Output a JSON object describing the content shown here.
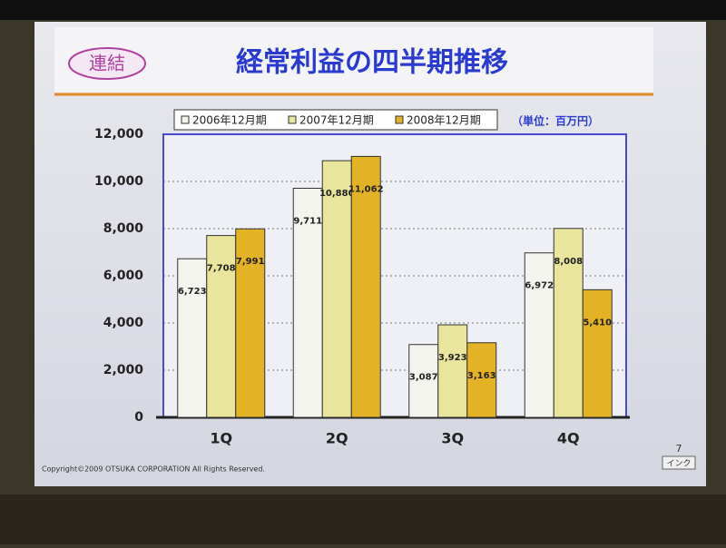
{
  "chart_data": {
    "type": "bar",
    "badge": "連結",
    "title": "経常利益の四半期推移",
    "unit_note": "（単位：百万円）",
    "footer": "Copyright©2009 OTSUKA CORPORATION All Rights Reserved.",
    "page_number": "7",
    "corner_label": "インク",
    "categories": [
      "1Q",
      "2Q",
      "3Q",
      "4Q"
    ],
    "series": [
      {
        "name": "2006年12月期",
        "color": "#f4f4ee",
        "values": [
          6723,
          9711,
          3087,
          6972
        ],
        "value_labels": [
          "6,723",
          "9,711",
          "3,087",
          "6,972"
        ]
      },
      {
        "name": "2007年12月期",
        "color": "#e9e59c",
        "values": [
          7708,
          10880,
          3923,
          8008
        ],
        "value_labels": [
          "7,708",
          "10,880",
          "3,923",
          "8,008"
        ]
      },
      {
        "name": "2008年12月期",
        "color": "#e3b225",
        "values": [
          7991,
          11062,
          3163,
          5410
        ],
        "value_labels": [
          "7,991",
          "11,062",
          "3,163",
          "5,410"
        ]
      }
    ],
    "ylim": [
      0,
      12000
    ],
    "yticks": [
      0,
      {
        "value": 2000,
        "label": "2,000"
      },
      {
        "value": 4000,
        "label": "4,000"
      },
      {
        "value": 6000,
        "label": "6,000"
      },
      {
        "value": 8000,
        "label": "8,000"
      },
      {
        "value": 10000,
        "label": "10,000"
      },
      {
        "value": 12000,
        "label": "12,000"
      }
    ],
    "grid": true
  }
}
